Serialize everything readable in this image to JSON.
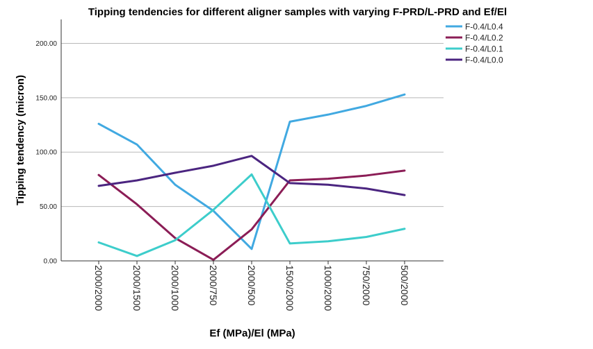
{
  "chart_data": {
    "type": "line",
    "title": "Tipping tendencies for different aligner samples with varying F-PRD/L-PRD and Ef/El",
    "xlabel": "Ef (MPa)/El (MPa)",
    "ylabel": "Tipping tendency (micron)",
    "categories": [
      "2000/2000",
      "2000/1500",
      "2000/1000",
      "2000/750",
      "2000/500",
      "1500/2000",
      "1000/2000",
      "750/2000",
      "500/2000"
    ],
    "ylim": [
      0,
      222
    ],
    "yticks": [
      "0.00",
      "50.00",
      "100.00",
      "150.00",
      "200.00"
    ],
    "grid": "horizontal",
    "legend_position": "top-right",
    "series": [
      {
        "name": "F-0.4/L0.4",
        "color": "#41a9e1",
        "values": [
          126,
          107,
          70,
          46,
          11,
          128,
          134.5,
          142.5,
          153
        ]
      },
      {
        "name": "F-0.4/L0.2",
        "color": "#8b1d56",
        "values": [
          79,
          52,
          21,
          1,
          29,
          74,
          75.5,
          78.5,
          83
        ]
      },
      {
        "name": "F-0.4/L0.1",
        "color": "#3dcdcb",
        "values": [
          17,
          4.5,
          19,
          47,
          79.5,
          16,
          18,
          22,
          29.5
        ]
      },
      {
        "name": "F-0.4/L0.0",
        "color": "#4b2580",
        "values": [
          69,
          74,
          81,
          87.5,
          96.5,
          71.5,
          70,
          66.5,
          60.5
        ]
      }
    ]
  }
}
